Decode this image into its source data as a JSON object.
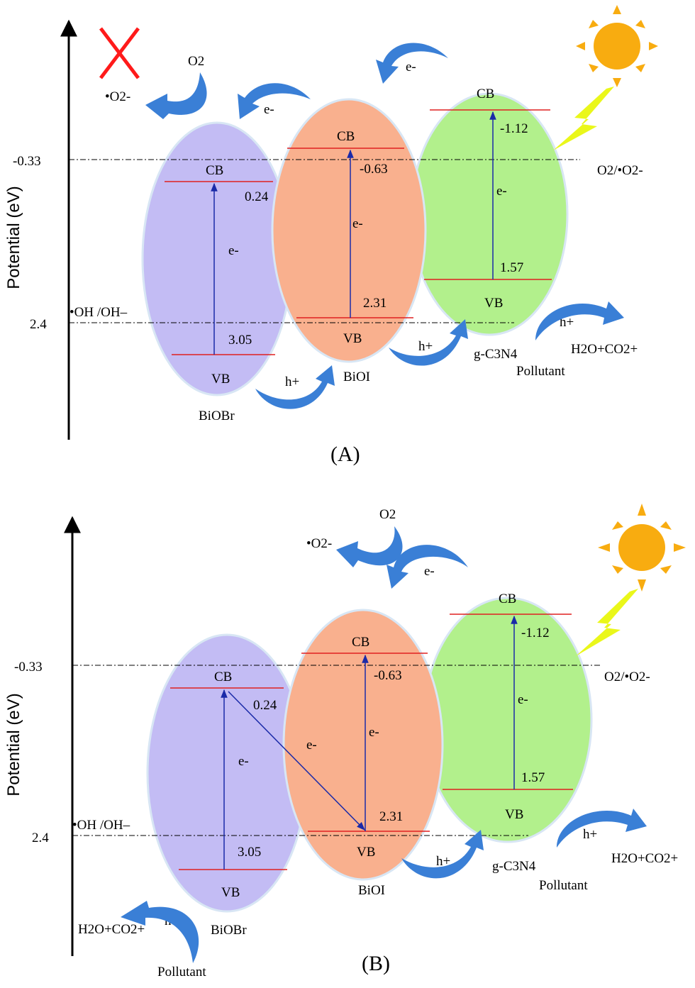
{
  "axis": {
    "ylabel": "Potential (eV)",
    "ticks": [
      "-0.33",
      "2.4"
    ]
  },
  "reference": {
    "o2": "O2/•O2-",
    "oh": "•OH /OH–"
  },
  "materials": {
    "biobr": {
      "name": "BiOBr",
      "cb": "0.24",
      "vb": "3.05",
      "color": "#c3bcf4"
    },
    "bioi": {
      "name": "BiOI",
      "cb": "-0.63",
      "vb": "2.31",
      "color": "#f9b08e"
    },
    "gcn": {
      "name": "g-C3N4",
      "cb": "-1.12",
      "vb": "1.57",
      "color": "#b2f08c"
    }
  },
  "band_labels": {
    "cb": "CB",
    "vb": "VB"
  },
  "species": {
    "electron": "e-",
    "hole": "h+",
    "o2": "O2",
    "superoxide": "•O2-",
    "products": "H2O+CO2+",
    "pollutant": "Pollutant"
  },
  "panels": {
    "a": "(A)",
    "b": "(B)"
  },
  "colors": {
    "band_line": "#e02020",
    "transition": "#1a2aa8",
    "curved_arrow": "#3a7fd6",
    "sun": "#f8ac10",
    "bolt": "#eaf71a",
    "cross": "#ff1a1a"
  }
}
